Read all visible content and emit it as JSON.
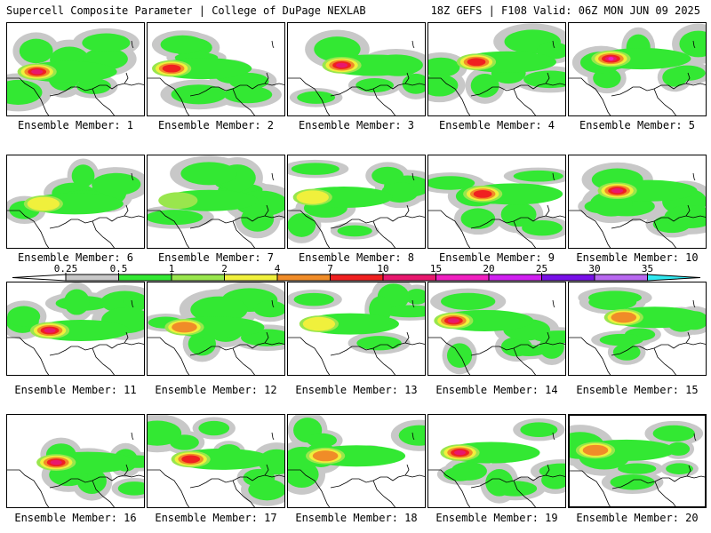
{
  "header": {
    "title": "Supercell Composite Parameter | College of DuPage NEXLAB",
    "run_info": "18Z GEFS | F108 Valid: 06Z MON JUN 09 2025"
  },
  "members": [
    {
      "label": "Ensemble Member: 1",
      "peak": 10
    },
    {
      "label": "Ensemble Member: 2",
      "peak": 7
    },
    {
      "label": "Ensemble Member: 3",
      "peak": 10
    },
    {
      "label": "Ensemble Member: 4",
      "peak": 7
    },
    {
      "label": "Ensemble Member: 5",
      "peak": 15
    },
    {
      "label": "Ensemble Member: 6",
      "peak": 2
    },
    {
      "label": "Ensemble Member: 7",
      "peak": 1
    },
    {
      "label": "Ensemble Member: 8",
      "peak": 2
    },
    {
      "label": "Ensemble Member: 9",
      "peak": 7
    },
    {
      "label": "Ensemble Member: 10",
      "peak": 10
    },
    {
      "label": "Ensemble Member: 11",
      "peak": 10
    },
    {
      "label": "Ensemble Member: 12",
      "peak": 4
    },
    {
      "label": "Ensemble Member: 13",
      "peak": 2
    },
    {
      "label": "Ensemble Member: 14",
      "peak": 10
    },
    {
      "label": "Ensemble Member: 15",
      "peak": 4
    },
    {
      "label": "Ensemble Member: 16",
      "peak": 10
    },
    {
      "label": "Ensemble Member: 17",
      "peak": 7
    },
    {
      "label": "Ensemble Member: 18",
      "peak": 4
    },
    {
      "label": "Ensemble Member: 19",
      "peak": 10
    },
    {
      "label": "Ensemble Member: 20",
      "peak": 4
    }
  ],
  "colorbar": {
    "ticks": [
      "0.25",
      "0.5",
      "1",
      "2",
      "4",
      "7",
      "10",
      "15",
      "20",
      "25",
      "30",
      "35"
    ],
    "colors": [
      "#c8c8c8",
      "#33e833",
      "#99e64d",
      "#f0f03c",
      "#f08c28",
      "#f02020",
      "#e8186e",
      "#f020c0",
      "#d020f0",
      "#7810e8",
      "#b868f0",
      "#30e8f0"
    ]
  },
  "highlighted_member": 20
}
